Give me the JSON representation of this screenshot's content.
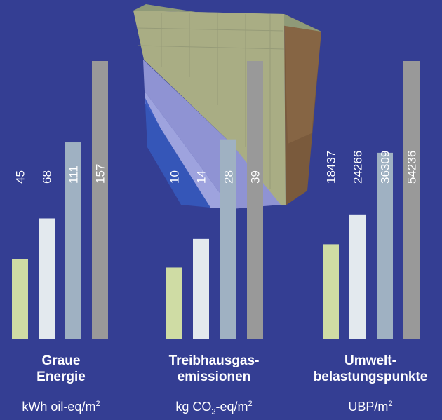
{
  "colors": {
    "background": "#343e93",
    "series": [
      "#cfdca4",
      "#e3e9ee",
      "#9fb1c2",
      "#999999"
    ],
    "label_text": "#ffffff"
  },
  "illustration": {
    "icon": "insulated-wall-section-illustration"
  },
  "chart_data": [
    {
      "type": "bar",
      "categories": [
        "1",
        "2",
        "3",
        "4"
      ],
      "values": [
        45,
        68,
        111,
        157
      ],
      "data_labels": [
        "45",
        "68",
        "111",
        "157"
      ],
      "title": "Graue Energie",
      "title_lines": [
        "Graue",
        "Energie"
      ],
      "unit": "kWh oil-eq/m²",
      "unit_parts": {
        "pre": "kWh oil-eq/m",
        "sup": "2"
      },
      "ylim": [
        0,
        157
      ]
    },
    {
      "type": "bar",
      "categories": [
        "1",
        "2",
        "3",
        "4"
      ],
      "values": [
        10,
        14,
        28,
        39
      ],
      "data_labels": [
        "10",
        "14",
        "28",
        "39"
      ],
      "title": "Treibhausgas-emissionen",
      "title_lines": [
        "Treibhausgas-",
        "emissionen"
      ],
      "unit": "kg CO₂-eq/m²",
      "unit_parts": {
        "pre": "kg CO",
        "sub": "2",
        "mid": "-eq/m",
        "sup": "2"
      },
      "ylim": [
        0,
        39
      ]
    },
    {
      "type": "bar",
      "categories": [
        "1",
        "2",
        "3",
        "4"
      ],
      "values": [
        18437,
        24266,
        36309,
        54236
      ],
      "data_labels": [
        "18437",
        "24266",
        "36309",
        "54236"
      ],
      "title": "Umweltbelastungspunkte",
      "title_lines": [
        "Umwelt-",
        "belastungspunkte"
      ],
      "unit": "UBP/m²",
      "unit_parts": {
        "pre": "UBP/m",
        "sup": "2"
      },
      "ylim": [
        0,
        54236
      ]
    }
  ]
}
